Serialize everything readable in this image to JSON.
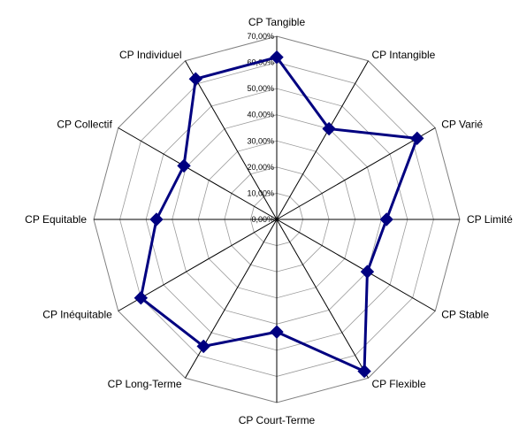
{
  "chart_data": {
    "type": "radar",
    "categories": [
      "CP Tangible",
      "CP Intangible",
      "CP Varié",
      "CP Limité",
      "CP Stable",
      "CP Flexible",
      "CP Court-Terme",
      "CP Long-Terme",
      "CP Inéquitable",
      "CP Equitable",
      "CP Collectif",
      "CP Individuel"
    ],
    "series": [
      {
        "values": [
          0.62,
          0.4,
          0.62,
          0.42,
          0.4,
          0.67,
          0.43,
          0.56,
          0.6,
          0.46,
          0.41,
          0.62
        ],
        "color": "#000080",
        "marker": "diamond"
      }
    ],
    "rlim": [
      0,
      0.7
    ],
    "ticks": [
      "0,00%",
      "10,00%",
      "20,00%",
      "30,00%",
      "40,00%",
      "50,00%",
      "60,00%",
      "70,00%"
    ],
    "grid": true,
    "grid_shape": "polygon",
    "legend": false
  }
}
